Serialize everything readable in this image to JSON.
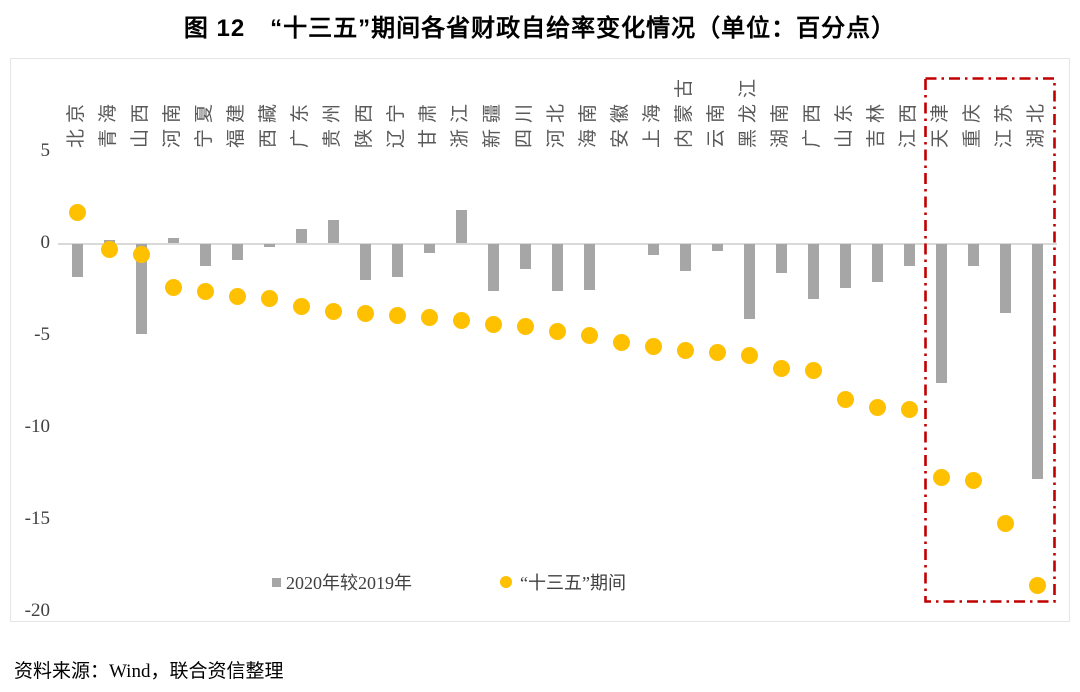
{
  "chart_data": {
    "type": "bar",
    "title": "图 12　“十三五”期间各省财政自给率变化情况（单位：百分点）",
    "categories": [
      "北京",
      "青海",
      "山西",
      "河南",
      "宁夏",
      "福建",
      "西藏",
      "广东",
      "贵州",
      "陕西",
      "辽宁",
      "甘肃",
      "浙江",
      "新疆",
      "四川",
      "河北",
      "海南",
      "安徽",
      "上海",
      "内蒙古",
      "云南",
      "黑龙江",
      "湖南",
      "广西",
      "山东",
      "吉林",
      "江西",
      "天津",
      "重庆",
      "江苏",
      "湖北"
    ],
    "series": [
      {
        "name": "2020年较2019年",
        "mark": "bar",
        "color": "#A6A6A6",
        "values": [
          -1.8,
          0.2,
          -4.9,
          0.3,
          -1.2,
          -0.9,
          -0.2,
          0.8,
          1.3,
          -2.0,
          -1.8,
          -0.5,
          1.8,
          -2.6,
          -1.4,
          -2.6,
          -2.5,
          0,
          -0.6,
          -1.5,
          -0.4,
          -4.1,
          -1.6,
          -3.0,
          -2.4,
          -2.1,
          -1.2,
          -7.6,
          -1.2,
          -3.8,
          -12.8
        ]
      },
      {
        "name": "“十三五”期间",
        "mark": "scatter",
        "color": "#FFC000",
        "values": [
          1.7,
          -0.3,
          -0.6,
          -2.4,
          -2.6,
          -2.9,
          -3.0,
          -3.4,
          -3.7,
          -3.8,
          -3.9,
          -4.0,
          -4.2,
          -4.4,
          -4.5,
          -4.8,
          -5.0,
          -5.4,
          -5.6,
          -5.8,
          -5.9,
          -6.1,
          -6.8,
          -6.9,
          -8.5,
          -8.9,
          -9.0,
          -12.7,
          -12.9,
          -15.2,
          -18.6
        ]
      }
    ],
    "xlabel": "",
    "ylabel": "",
    "unit": "百分点",
    "ylim": [
      -20,
      5
    ],
    "yticks": [
      5,
      0,
      -5,
      -10,
      -15,
      -20
    ],
    "grid": "zero-line-only",
    "legend_position": "bottom",
    "highlight_box": {
      "categories": [
        "天津",
        "重庆",
        "江苏",
        "湖北"
      ],
      "start_index": 27,
      "end_index": 30,
      "color": "#C00000",
      "style": "dash-dot"
    },
    "source": "资料来源：Wind，联合资信整理"
  },
  "colors": {
    "bar": "#A6A6A6",
    "dot": "#FFC000",
    "zero_line": "#D9D9D9",
    "axis_text": "#404040",
    "category_text": "#595959",
    "highlight": "#C00000"
  }
}
